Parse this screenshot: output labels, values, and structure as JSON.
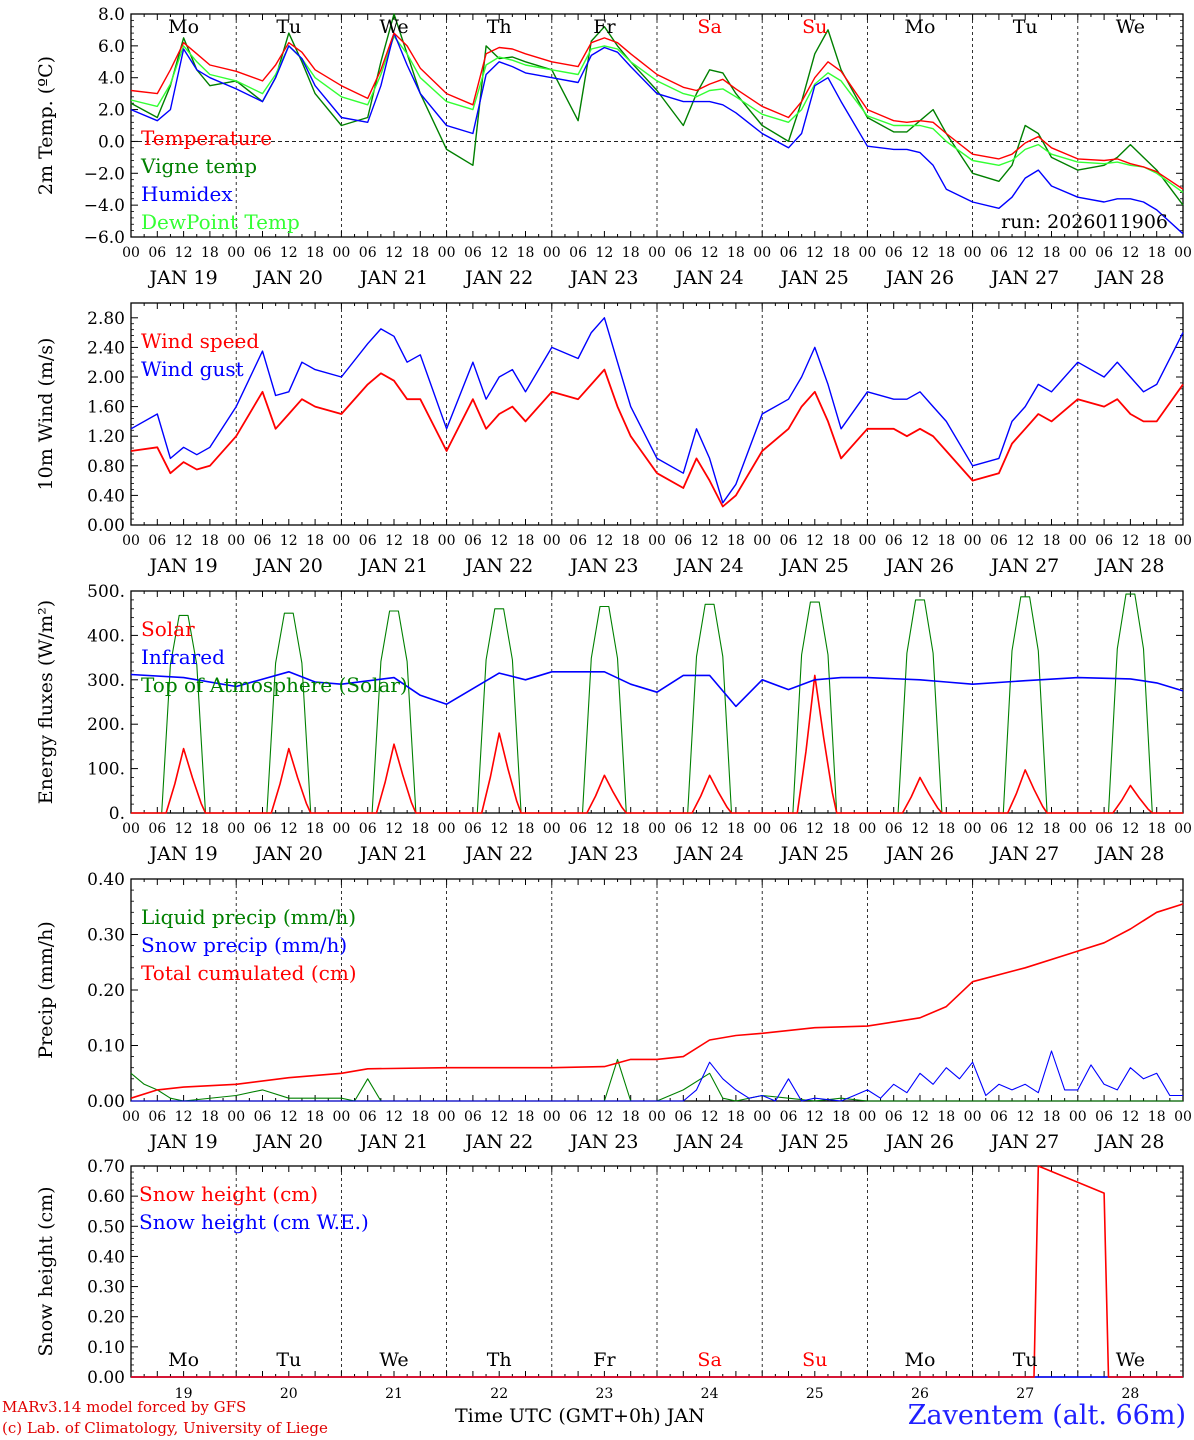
{
  "footer": {
    "model_line": "MARv3.14 model forced by GFS",
    "credit_line": "(c) Lab. of Climatology, University of Liege",
    "time_axis_label": "Time UTC (GMT+0h) JAN",
    "station": "Zaventem (alt. 66m)"
  },
  "colors": {
    "red": "#ff0000",
    "green": "#008000",
    "blue": "#0000ff",
    "lightgreen": "#33ff33"
  },
  "days": {
    "weekday_labels": [
      "Mo",
      "Tu",
      "We",
      "Th",
      "Fr",
      "Sa",
      "Su",
      "Mo",
      "Tu",
      "We"
    ],
    "weekend_flags": [
      false,
      false,
      false,
      false,
      false,
      true,
      true,
      false,
      false,
      false
    ],
    "date_labels": [
      "JAN 19",
      "JAN 20",
      "JAN 21",
      "JAN 22",
      "JAN 23",
      "JAN 24",
      "JAN 25",
      "JAN 26",
      "JAN 27",
      "JAN 28"
    ],
    "day_numbers": [
      "19",
      "20",
      "21",
      "22",
      "23",
      "24",
      "25",
      "26",
      "27",
      "28"
    ],
    "hour_ticks": [
      "00",
      "06",
      "12",
      "18"
    ],
    "final_hour_tick": "00"
  },
  "chart_data": [
    {
      "type": "line",
      "id": "temperature",
      "ylabel": "2m Temp. (ºC)",
      "ylim": [
        -6,
        8
      ],
      "yticks": [
        "8.0",
        "6.0",
        "4.0",
        "2.0",
        "0.0",
        "−2.0",
        "−4.0",
        "−6.0"
      ],
      "ytick_values": [
        8,
        6,
        4,
        2,
        0,
        -2,
        -4,
        -6
      ],
      "annotation": "run: 2026011906",
      "zero_line": true,
      "x_hours": [
        0,
        6,
        9,
        12,
        15,
        18,
        24,
        30,
        33,
        36,
        39,
        42,
        48,
        54,
        57,
        60,
        63,
        66,
        72,
        78,
        81,
        84,
        87,
        90,
        96,
        102,
        105,
        108,
        111,
        114,
        120,
        126,
        129,
        132,
        135,
        138,
        144,
        150,
        153,
        156,
        159,
        162,
        168,
        174,
        177,
        180,
        183,
        186,
        192,
        198,
        201,
        204,
        207,
        210,
        216,
        222,
        225,
        228,
        231,
        234,
        240
      ],
      "series": [
        {
          "name": "Temperature",
          "color": "#ff0000",
          "values": [
            3.2,
            3.0,
            4.5,
            6.2,
            5.5,
            4.8,
            4.4,
            3.8,
            4.8,
            6.2,
            5.6,
            4.5,
            3.5,
            2.7,
            4.5,
            6.8,
            6.0,
            4.6,
            3.0,
            2.3,
            5.5,
            5.9,
            5.8,
            5.5,
            5.0,
            4.7,
            6.2,
            6.5,
            6.2,
            5.5,
            4.2,
            3.4,
            3.2,
            3.6,
            3.9,
            3.3,
            2.2,
            1.5,
            2.5,
            4.0,
            5.0,
            4.4,
            2.0,
            1.3,
            1.2,
            1.3,
            1.2,
            0.5,
            -0.8,
            -1.1,
            -0.8,
            -0.1,
            0.3,
            -0.4,
            -1.1,
            -1.2,
            -1.1,
            -1.4,
            -1.6,
            -1.9,
            -3.0
          ]
        },
        {
          "name": "Vigne temp",
          "color": "#008000",
          "values": [
            2.4,
            1.5,
            3.5,
            6.5,
            4.5,
            3.5,
            3.8,
            2.5,
            4.0,
            6.8,
            5.0,
            3.0,
            1.0,
            1.5,
            5.0,
            8.0,
            5.5,
            3.0,
            -0.5,
            -1.5,
            6.0,
            5.2,
            5.3,
            5.0,
            4.5,
            1.3,
            6.3,
            7.2,
            6.0,
            5.0,
            3.2,
            1.0,
            3.0,
            4.5,
            4.3,
            3.0,
            1.0,
            0.0,
            2.5,
            5.5,
            7.0,
            4.5,
            1.5,
            0.6,
            0.6,
            1.3,
            2.0,
            0.5,
            -2.0,
            -2.5,
            -1.5,
            1.0,
            0.5,
            -1.0,
            -1.8,
            -1.5,
            -1.0,
            -0.2,
            -1.0,
            -1.8,
            -4.0
          ]
        },
        {
          "name": "Humidex",
          "color": "#0000ff",
          "values": [
            2.0,
            1.3,
            2.0,
            5.8,
            4.5,
            4.0,
            3.3,
            2.5,
            4.0,
            6.0,
            5.2,
            3.5,
            1.5,
            1.2,
            3.5,
            6.8,
            4.8,
            3.0,
            1.0,
            0.5,
            4.2,
            5.0,
            4.7,
            4.3,
            4.0,
            3.7,
            5.4,
            5.9,
            5.6,
            4.7,
            3.0,
            2.5,
            2.5,
            2.5,
            2.3,
            1.8,
            0.5,
            -0.4,
            0.5,
            3.5,
            4.0,
            2.5,
            -0.3,
            -0.5,
            -0.5,
            -0.7,
            -1.5,
            -3.0,
            -3.8,
            -4.2,
            -3.5,
            -2.3,
            -1.8,
            -2.8,
            -3.5,
            -3.8,
            -3.6,
            -3.6,
            -3.8,
            -4.3,
            -5.8
          ]
        },
        {
          "name": "DewPoint Temp",
          "color": "#33ff33",
          "values": [
            2.6,
            2.2,
            3.6,
            6.0,
            5.0,
            4.2,
            3.8,
            3.0,
            4.2,
            6.0,
            5.2,
            4.0,
            2.8,
            2.3,
            4.2,
            6.6,
            5.5,
            4.0,
            2.5,
            2.0,
            4.8,
            5.3,
            5.1,
            4.8,
            4.5,
            4.2,
            5.8,
            6.0,
            5.8,
            5.0,
            3.8,
            3.0,
            2.8,
            3.2,
            3.3,
            2.8,
            1.7,
            1.2,
            2.0,
            3.6,
            4.3,
            3.8,
            1.6,
            1.0,
            1.0,
            1.0,
            0.8,
            0.0,
            -1.2,
            -1.5,
            -1.2,
            -0.5,
            -0.2,
            -0.8,
            -1.3,
            -1.4,
            -1.3,
            -1.5,
            -1.6,
            -2.0,
            -3.2
          ]
        }
      ]
    },
    {
      "type": "line",
      "id": "wind",
      "ylabel": "10m Wind (m/s)",
      "ylim": [
        0,
        3.0
      ],
      "yticks": [
        "2.80",
        "2.40",
        "2.00",
        "1.60",
        "1.20",
        "0.80",
        "0.40",
        "0.00"
      ],
      "ytick_values": [
        2.8,
        2.4,
        2.0,
        1.6,
        1.2,
        0.8,
        0.4,
        0.0
      ],
      "x_hours": [
        0,
        6,
        9,
        12,
        15,
        18,
        24,
        30,
        33,
        36,
        39,
        42,
        48,
        54,
        57,
        60,
        63,
        66,
        72,
        78,
        81,
        84,
        87,
        90,
        96,
        102,
        105,
        108,
        111,
        114,
        120,
        126,
        129,
        132,
        135,
        138,
        144,
        150,
        153,
        156,
        159,
        162,
        168,
        174,
        177,
        180,
        183,
        186,
        192,
        198,
        201,
        204,
        207,
        210,
        216,
        222,
        225,
        228,
        231,
        234,
        240
      ],
      "series": [
        {
          "name": "Wind speed",
          "color": "#ff0000",
          "values": [
            1.0,
            1.05,
            0.7,
            0.85,
            0.75,
            0.8,
            1.2,
            1.8,
            1.3,
            1.5,
            1.7,
            1.6,
            1.5,
            1.9,
            2.05,
            1.95,
            1.7,
            1.7,
            1.0,
            1.7,
            1.3,
            1.5,
            1.6,
            1.4,
            1.8,
            1.7,
            1.9,
            2.1,
            1.6,
            1.2,
            0.7,
            0.5,
            0.9,
            0.6,
            0.25,
            0.4,
            1.0,
            1.3,
            1.6,
            1.8,
            1.4,
            0.9,
            1.3,
            1.3,
            1.2,
            1.3,
            1.2,
            1.0,
            0.6,
            0.7,
            1.1,
            1.3,
            1.5,
            1.4,
            1.7,
            1.6,
            1.7,
            1.5,
            1.4,
            1.4,
            1.9
          ]
        },
        {
          "name": "Wind gust",
          "color": "#0000ff",
          "values": [
            1.3,
            1.5,
            0.9,
            1.05,
            0.95,
            1.05,
            1.6,
            2.35,
            1.75,
            1.8,
            2.2,
            2.1,
            2.0,
            2.45,
            2.65,
            2.55,
            2.2,
            2.3,
            1.3,
            2.2,
            1.7,
            2.0,
            2.1,
            1.8,
            2.4,
            2.25,
            2.6,
            2.8,
            2.2,
            1.6,
            0.9,
            0.7,
            1.3,
            0.9,
            0.3,
            0.55,
            1.5,
            1.7,
            2.0,
            2.4,
            1.9,
            1.3,
            1.8,
            1.7,
            1.7,
            1.8,
            1.6,
            1.4,
            0.8,
            0.9,
            1.4,
            1.6,
            1.9,
            1.8,
            2.2,
            2.0,
            2.2,
            2.0,
            1.8,
            1.9,
            2.6
          ]
        }
      ]
    },
    {
      "type": "line",
      "id": "energy",
      "ylabel": "Energy fluxes (W/m²)",
      "ylim": [
        0,
        500
      ],
      "yticks": [
        "500.",
        "400.",
        "300.",
        "200.",
        "100.",
        "0."
      ],
      "ytick_values": [
        500,
        400,
        300,
        200,
        100,
        0
      ],
      "series": [
        {
          "name": "Solar",
          "color": "#ff0000",
          "day_peaks": [
            145,
            145,
            155,
            180,
            85,
            85,
            310,
            80,
            97,
            62
          ]
        },
        {
          "name": "Infrared",
          "color": "#0000ff",
          "x_hours": [
            0,
            12,
            24,
            36,
            42,
            48,
            60,
            66,
            72,
            84,
            90,
            96,
            108,
            114,
            120,
            126,
            132,
            138,
            144,
            150,
            156,
            162,
            168,
            180,
            186,
            192,
            204,
            216,
            228,
            234,
            240
          ],
          "values": [
            312,
            305,
            285,
            318,
            295,
            290,
            305,
            265,
            245,
            315,
            300,
            318,
            318,
            290,
            272,
            310,
            310,
            240,
            300,
            278,
            300,
            305,
            305,
            300,
            295,
            290,
            298,
            305,
            302,
            293,
            275
          ]
        },
        {
          "name": "Top of Atmosphere (Solar)",
          "color": "#008000",
          "day_peaks": [
            445,
            450,
            455,
            460,
            465,
            470,
            475,
            480,
            487,
            493
          ]
        }
      ]
    },
    {
      "type": "line",
      "id": "precip",
      "ylabel": "Precip (mm/h)",
      "ylim": [
        0,
        0.4
      ],
      "yticks": [
        "0.40",
        "0.30",
        "0.20",
        "0.10",
        "0.00"
      ],
      "ytick_values": [
        0.4,
        0.3,
        0.2,
        0.1,
        0.0
      ],
      "series": [
        {
          "name": "Liquid precip (mm/h)",
          "color": "#008000",
          "x_hours": [
            0,
            3,
            6,
            9,
            12,
            24,
            30,
            36,
            48,
            51,
            54,
            57,
            60,
            72,
            108,
            111,
            114,
            120,
            126,
            132,
            135,
            138,
            144,
            150,
            156,
            162,
            168,
            240
          ],
          "values": [
            0.05,
            0.03,
            0.02,
            0.005,
            0.0,
            0.01,
            0.02,
            0.005,
            0.005,
            0.0,
            0.04,
            0.0,
            0.0,
            0.0,
            0.0,
            0.075,
            0.0,
            0.0,
            0.02,
            0.05,
            0.005,
            0.0,
            0.01,
            0.005,
            0.0,
            0.005,
            0.0,
            0.0
          ]
        },
        {
          "name": "Snow precip (mm/h)",
          "color": "#0000ff",
          "x_hours": [
            0,
            120,
            126,
            129,
            132,
            135,
            138,
            141,
            144,
            147,
            150,
            153,
            156,
            162,
            165,
            168,
            171,
            174,
            177,
            180,
            183,
            186,
            189,
            192,
            195,
            198,
            201,
            204,
            207,
            210,
            213,
            216,
            219,
            222,
            225,
            228,
            231,
            234,
            237,
            240
          ],
          "values": [
            0.0,
            0.0,
            0.0,
            0.02,
            0.07,
            0.04,
            0.02,
            0.005,
            0.01,
            0.0,
            0.04,
            0.0,
            0.005,
            0.0,
            0.01,
            0.02,
            0.005,
            0.03,
            0.015,
            0.05,
            0.03,
            0.06,
            0.04,
            0.07,
            0.01,
            0.03,
            0.02,
            0.03,
            0.015,
            0.09,
            0.02,
            0.02,
            0.065,
            0.03,
            0.02,
            0.06,
            0.04,
            0.05,
            0.01,
            0.01
          ]
        },
        {
          "name": "Total cumulated (cm)",
          "color": "#ff0000",
          "x_hours": [
            0,
            6,
            12,
            24,
            36,
            48,
            54,
            72,
            96,
            108,
            114,
            120,
            126,
            132,
            138,
            144,
            156,
            168,
            180,
            186,
            192,
            204,
            216,
            222,
            228,
            234,
            240
          ],
          "values": [
            0.005,
            0.02,
            0.025,
            0.03,
            0.042,
            0.05,
            0.058,
            0.06,
            0.06,
            0.062,
            0.075,
            0.075,
            0.08,
            0.11,
            0.118,
            0.122,
            0.132,
            0.135,
            0.15,
            0.17,
            0.215,
            0.24,
            0.27,
            0.285,
            0.31,
            0.34,
            0.355
          ]
        }
      ]
    },
    {
      "type": "line",
      "id": "snow",
      "ylabel": "Snow height (cm)",
      "ylim": [
        0,
        0.7
      ],
      "yticks": [
        "0.70",
        "0.60",
        "0.50",
        "0.40",
        "0.30",
        "0.20",
        "0.10",
        "0.00"
      ],
      "ytick_values": [
        0.7,
        0.6,
        0.5,
        0.4,
        0.3,
        0.2,
        0.1,
        0.0
      ],
      "series": [
        {
          "name": "Snow height (cm)",
          "color": "#ff0000",
          "x_hours": [
            0,
            206,
            207,
            222,
            223,
            240
          ],
          "values": [
            0.0,
            0.0,
            0.7,
            0.61,
            0.0,
            0.0
          ]
        },
        {
          "name": "Snow height (cm W.E.)",
          "color": "#0000ff",
          "x_hours": [
            0,
            240
          ],
          "values": [
            0.0,
            0.0
          ]
        }
      ]
    }
  ]
}
